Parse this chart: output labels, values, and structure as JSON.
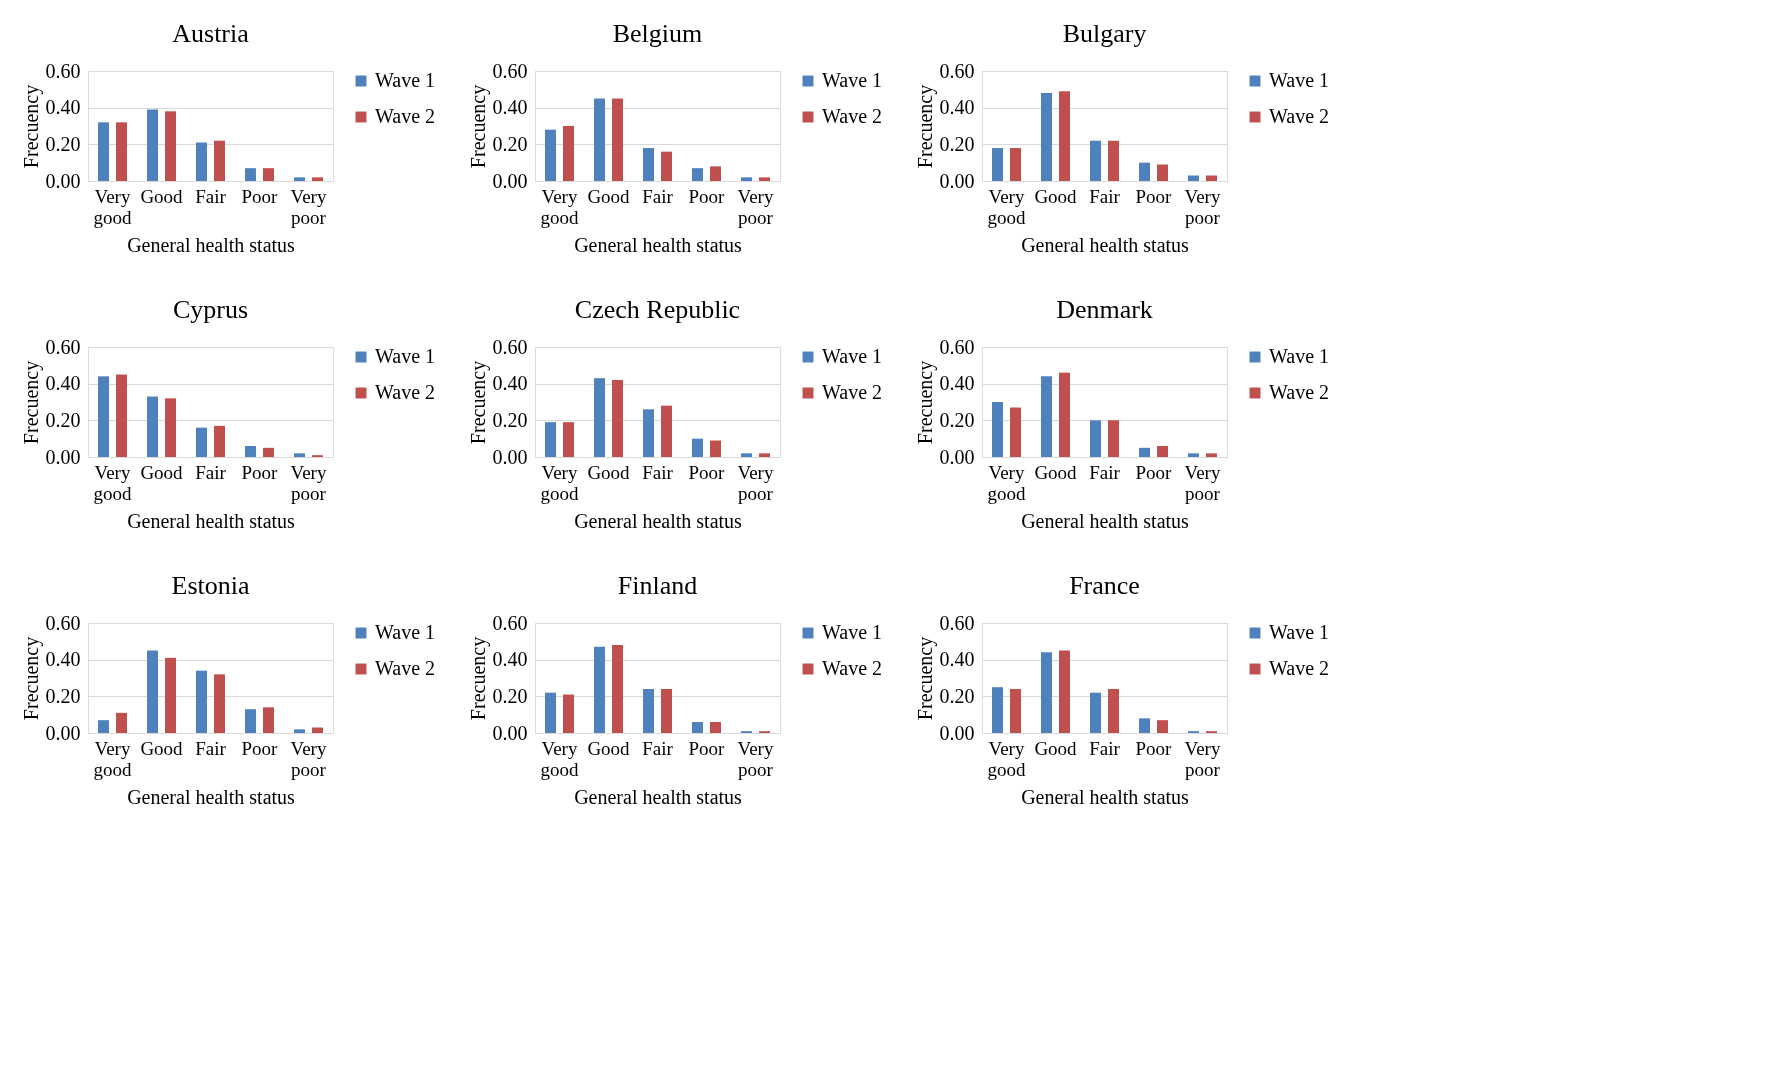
{
  "chart_data": [
    {
      "type": "bar",
      "title": "Austria",
      "xlabel": "General health status",
      "ylabel": "Frecuency",
      "categories": [
        "Very good",
        "Good",
        "Fair",
        "Poor",
        "Very poor"
      ],
      "ylim": [
        0,
        0.6
      ],
      "yticks": [
        {
          "value": 0,
          "label": "0.00"
        },
        {
          "value": 0.2,
          "label": "0.20"
        },
        {
          "value": 0.4,
          "label": "0.40"
        },
        {
          "value": 0.6,
          "label": "0.60"
        }
      ],
      "grid": "y",
      "legend": "right",
      "series": [
        {
          "name": "Wave 1",
          "color": "#4f81bd",
          "values": [
            0.32,
            0.39,
            0.21,
            0.07,
            0.02
          ]
        },
        {
          "name": "Wave 2",
          "color": "#c0504d",
          "values": [
            0.32,
            0.38,
            0.22,
            0.07,
            0.02
          ]
        }
      ]
    },
    {
      "type": "bar",
      "title": "Belgium",
      "xlabel": "General health status",
      "ylabel": "Frecuency",
      "categories": [
        "Very good",
        "Good",
        "Fair",
        "Poor",
        "Very poor"
      ],
      "ylim": [
        0,
        0.6
      ],
      "yticks": [
        {
          "value": 0,
          "label": "0.00"
        },
        {
          "value": 0.2,
          "label": "0.20"
        },
        {
          "value": 0.4,
          "label": "0.40"
        },
        {
          "value": 0.6,
          "label": "0.60"
        }
      ],
      "grid": "y",
      "legend": "right",
      "series": [
        {
          "name": "Wave 1",
          "color": "#4f81bd",
          "values": [
            0.28,
            0.45,
            0.18,
            0.07,
            0.02
          ]
        },
        {
          "name": "Wave 2",
          "color": "#c0504d",
          "values": [
            0.3,
            0.45,
            0.16,
            0.08,
            0.02
          ]
        }
      ]
    },
    {
      "type": "bar",
      "title": "Bulgary",
      "xlabel": "General health status",
      "ylabel": "Frecuency",
      "categories": [
        "Very good",
        "Good",
        "Fair",
        "Poor",
        "Very poor"
      ],
      "ylim": [
        0,
        0.6
      ],
      "yticks": [
        {
          "value": 0,
          "label": "0.00"
        },
        {
          "value": 0.2,
          "label": "0.20"
        },
        {
          "value": 0.4,
          "label": "0.40"
        },
        {
          "value": 0.6,
          "label": "0.60"
        }
      ],
      "grid": "y",
      "legend": "right",
      "series": [
        {
          "name": "Wave 1",
          "color": "#4f81bd",
          "values": [
            0.18,
            0.48,
            0.22,
            0.1,
            0.03
          ]
        },
        {
          "name": "Wave 2",
          "color": "#c0504d",
          "values": [
            0.18,
            0.49,
            0.22,
            0.09,
            0.03
          ]
        }
      ]
    },
    {
      "type": "bar",
      "title": "Cyprus",
      "xlabel": "General health status",
      "ylabel": "Frecuency",
      "categories": [
        "Very good",
        "Good",
        "Fair",
        "Poor",
        "Very poor"
      ],
      "ylim": [
        0,
        0.6
      ],
      "yticks": [
        {
          "value": 0,
          "label": "0.00"
        },
        {
          "value": 0.2,
          "label": "0.20"
        },
        {
          "value": 0.4,
          "label": "0.40"
        },
        {
          "value": 0.6,
          "label": "0.60"
        }
      ],
      "grid": "y",
      "legend": "right",
      "series": [
        {
          "name": "Wave 1",
          "color": "#4f81bd",
          "values": [
            0.44,
            0.33,
            0.16,
            0.06,
            0.02
          ]
        },
        {
          "name": "Wave 2",
          "color": "#c0504d",
          "values": [
            0.45,
            0.32,
            0.17,
            0.05,
            0.01
          ]
        }
      ]
    },
    {
      "type": "bar",
      "title": "Czech Republic",
      "xlabel": "General health status",
      "ylabel": "Frecuency",
      "categories": [
        "Very good",
        "Good",
        "Fair",
        "Poor",
        "Very poor"
      ],
      "ylim": [
        0,
        0.6
      ],
      "yticks": [
        {
          "value": 0,
          "label": "0.00"
        },
        {
          "value": 0.2,
          "label": "0.20"
        },
        {
          "value": 0.4,
          "label": "0.40"
        },
        {
          "value": 0.6,
          "label": "0.60"
        }
      ],
      "grid": "y",
      "legend": "right",
      "series": [
        {
          "name": "Wave 1",
          "color": "#4f81bd",
          "values": [
            0.19,
            0.43,
            0.26,
            0.1,
            0.02
          ]
        },
        {
          "name": "Wave 2",
          "color": "#c0504d",
          "values": [
            0.19,
            0.42,
            0.28,
            0.09,
            0.02
          ]
        }
      ]
    },
    {
      "type": "bar",
      "title": "Denmark",
      "xlabel": "General health status",
      "ylabel": "Frecuency",
      "categories": [
        "Very good",
        "Good",
        "Fair",
        "Poor",
        "Very poor"
      ],
      "ylim": [
        0,
        0.6
      ],
      "yticks": [
        {
          "value": 0,
          "label": "0.00"
        },
        {
          "value": 0.2,
          "label": "0.20"
        },
        {
          "value": 0.4,
          "label": "0.40"
        },
        {
          "value": 0.6,
          "label": "0.60"
        }
      ],
      "grid": "y",
      "legend": "right",
      "series": [
        {
          "name": "Wave 1",
          "color": "#4f81bd",
          "values": [
            0.3,
            0.44,
            0.2,
            0.05,
            0.02
          ]
        },
        {
          "name": "Wave 2",
          "color": "#c0504d",
          "values": [
            0.27,
            0.46,
            0.2,
            0.06,
            0.02
          ]
        }
      ]
    },
    {
      "type": "bar",
      "title": "Estonia",
      "xlabel": "General health status",
      "ylabel": "Frecuency",
      "categories": [
        "Very good",
        "Good",
        "Fair",
        "Poor",
        "Very poor"
      ],
      "ylim": [
        0,
        0.6
      ],
      "yticks": [
        {
          "value": 0,
          "label": "0.00"
        },
        {
          "value": 0.2,
          "label": "0.20"
        },
        {
          "value": 0.4,
          "label": "0.40"
        },
        {
          "value": 0.6,
          "label": "0.60"
        }
      ],
      "grid": "y",
      "legend": "right",
      "series": [
        {
          "name": "Wave 1",
          "color": "#4f81bd",
          "values": [
            0.07,
            0.45,
            0.34,
            0.13,
            0.02
          ]
        },
        {
          "name": "Wave 2",
          "color": "#c0504d",
          "values": [
            0.11,
            0.41,
            0.32,
            0.14,
            0.03
          ]
        }
      ]
    },
    {
      "type": "bar",
      "title": "Finland",
      "xlabel": "General health status",
      "ylabel": "Frecuency",
      "categories": [
        "Very good",
        "Good",
        "Fair",
        "Poor",
        "Very poor"
      ],
      "ylim": [
        0,
        0.6
      ],
      "yticks": [
        {
          "value": 0,
          "label": "0.00"
        },
        {
          "value": 0.2,
          "label": "0.20"
        },
        {
          "value": 0.4,
          "label": "0.40"
        },
        {
          "value": 0.6,
          "label": "0.60"
        }
      ],
      "grid": "y",
      "legend": "right",
      "series": [
        {
          "name": "Wave 1",
          "color": "#4f81bd",
          "values": [
            0.22,
            0.47,
            0.24,
            0.06,
            0.01
          ]
        },
        {
          "name": "Wave 2",
          "color": "#c0504d",
          "values": [
            0.21,
            0.48,
            0.24,
            0.06,
            0.01
          ]
        }
      ]
    },
    {
      "type": "bar",
      "title": "France",
      "xlabel": "General health status",
      "ylabel": "Frecuency",
      "categories": [
        "Very good",
        "Good",
        "Fair",
        "Poor",
        "Very poor"
      ],
      "ylim": [
        0,
        0.6
      ],
      "yticks": [
        {
          "value": 0,
          "label": "0.00"
        },
        {
          "value": 0.2,
          "label": "0.20"
        },
        {
          "value": 0.4,
          "label": "0.40"
        },
        {
          "value": 0.6,
          "label": "0.60"
        }
      ],
      "grid": "y",
      "legend": "right",
      "series": [
        {
          "name": "Wave 1",
          "color": "#4f81bd",
          "values": [
            0.25,
            0.44,
            0.22,
            0.08,
            0.01
          ]
        },
        {
          "name": "Wave 2",
          "color": "#c0504d",
          "values": [
            0.24,
            0.45,
            0.24,
            0.07,
            0.01
          ]
        }
      ]
    }
  ]
}
